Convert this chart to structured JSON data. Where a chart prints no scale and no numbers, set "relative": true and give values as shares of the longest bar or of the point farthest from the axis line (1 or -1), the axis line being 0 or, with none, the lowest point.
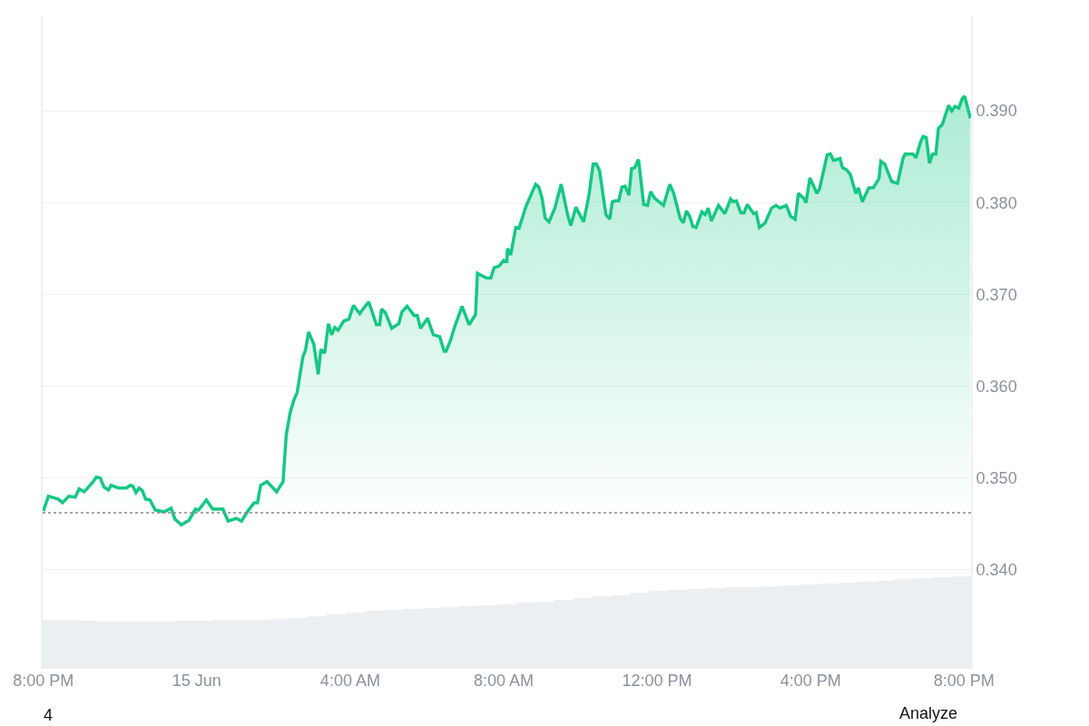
{
  "chart_data": [
    {
      "type": "area",
      "x": [
        "--06-14T20:00",
        "--06-14T20:08",
        "--06-14T20:23",
        "--06-14T20:30",
        "--06-14T20:40",
        "--06-14T20:50",
        "--06-14T20:56",
        "--06-14T21:04",
        "--06-14T21:17",
        "--06-14T21:23",
        "--06-14T21:29",
        "--06-14T21:35",
        "--06-14T21:42",
        "--06-14T21:46",
        "--06-14T21:58",
        "--06-14T22:10",
        "--06-14T22:16",
        "--06-14T22:20",
        "--06-14T22:25",
        "--06-14T22:30",
        "--06-14T22:35",
        "--06-14T22:40",
        "--06-14T22:47",
        "--06-14T22:55",
        "--06-14T23:09",
        "--06-14T23:20",
        "--06-14T23:26",
        "--06-14T23:36",
        "--06-14T23:48",
        "--06-14T23:58",
        "--06-15T00:03",
        "--06-15T00:15",
        "--06-15T00:25",
        "--06-15T00:41",
        "--06-15T00:49",
        "--06-15T01:02",
        "--06-15T01:10",
        "--06-15T01:21",
        "--06-15T01:30",
        "--06-15T01:35",
        "--06-15T01:40",
        "--06-15T01:50",
        "--06-15T02:05",
        "--06-15T02:15",
        "--06-15T02:20",
        "--06-15T02:26",
        "--06-15T02:32",
        "--06-15T02:37",
        "--06-15T02:46",
        "--06-15T02:50",
        "--06-15T02:55",
        "--06-15T03:03",
        "--06-15T03:10",
        "--06-15T03:14",
        "--06-15T03:20",
        "--06-15T03:26",
        "--06-15T03:31",
        "--06-15T03:36",
        "--06-15T03:41",
        "--06-15T03:50",
        "--06-15T03:58",
        "--06-15T04:05",
        "--06-15T04:15",
        "--06-15T04:20",
        "--06-15T04:29",
        "--06-15T04:41",
        "--06-15T04:46",
        "--06-15T04:49",
        "--06-15T04:55",
        "--06-15T05:05",
        "--06-15T05:16",
        "--06-15T05:21",
        "--06-15T05:29",
        "--06-15T05:40",
        "--06-15T05:45",
        "--06-15T05:50",
        "--06-15T06:01",
        "--06-15T06:10",
        "--06-15T06:20",
        "--06-15T06:27",
        "--06-15T06:30",
        "--06-15T06:37",
        "--06-15T06:43",
        "--06-15T06:55",
        "--06-15T07:06",
        "--06-15T07:16",
        "--06-15T07:19",
        "--06-15T07:33",
        "--06-15T07:40",
        "--06-15T07:45",
        "--06-15T07:53",
        "--06-15T08:00",
        "--06-15T08:05",
        "--06-15T08:06",
        "--06-15T08:11",
        "--06-15T08:19",
        "--06-15T08:24",
        "--06-15T08:35",
        "--06-15T08:50",
        "--06-15T08:55",
        "--06-15T09:00",
        "--06-15T09:05",
        "--06-15T09:11",
        "--06-15T09:20",
        "--06-15T09:30",
        "--06-15T09:40",
        "--06-15T09:45",
        "--06-15T09:53",
        "--06-15T10:05",
        "--06-15T10:13",
        "--06-15T10:20",
        "--06-15T10:25",
        "--06-15T10:30",
        "--06-15T10:40",
        "--06-15T10:46",
        "--06-15T10:50",
        "--06-15T10:55",
        "--06-15T11:00",
        "--06-15T11:05",
        "--06-15T11:10",
        "--06-15T11:16",
        "--06-15T11:20",
        "--06-15T11:25",
        "--06-15T11:31",
        "--06-15T11:39",
        "--06-15T11:45",
        "--06-15T11:50",
        "--06-15T11:56",
        "--06-15T12:10",
        "--06-15T12:20",
        "--06-15T12:26",
        "--06-15T12:36",
        "--06-15T12:41",
        "--06-15T12:46",
        "--06-15T12:51",
        "--06-15T12:56",
        "--06-15T13:01",
        "--06-15T13:10",
        "--06-15T13:15",
        "--06-15T13:20",
        "--06-15T13:25",
        "--06-15T13:36",
        "--06-15T13:46",
        "--06-15T13:55",
        "--06-15T13:59",
        "--06-15T14:04",
        "--06-15T14:11",
        "--06-15T14:16",
        "--06-15T14:21",
        "--06-15T14:31",
        "--06-15T14:35",
        "--06-15T14:40",
        "--06-15T14:49",
        "--06-15T14:59",
        "--06-15T15:06",
        "--06-15T15:12",
        "--06-15T15:22",
        "--06-15T15:29",
        "--06-15T15:36",
        "--06-15T15:41",
        "--06-15T15:49",
        "--06-15T15:53",
        "--06-15T15:59",
        "--06-15T16:10",
        "--06-15T16:14",
        "--06-15T16:26",
        "--06-15T16:31",
        "--06-15T16:36",
        "--06-15T16:46",
        "--06-15T16:50",
        "--06-15T16:56",
        "--06-15T17:02",
        "--06-15T17:11",
        "--06-15T17:15",
        "--06-15T17:21",
        "--06-15T17:31",
        "--06-15T17:38",
        "--06-15T17:47",
        "--06-15T17:50",
        "--06-15T17:56",
        "--06-15T18:07",
        "--06-15T18:16",
        "--06-15T18:25",
        "--06-15T18:28",
        "--06-15T18:40",
        "--06-15T18:45",
        "--06-15T18:52",
        "--06-15T18:56",
        "--06-15T19:01",
        "--06-15T19:06",
        "--06-15T19:11",
        "--06-15T19:16",
        "--06-15T19:20",
        "--06-15T19:26",
        "--06-15T19:36",
        "--06-15T19:41",
        "--06-15T19:46",
        "--06-15T19:52",
        "--06-15T19:57",
        "--06-15T20:01",
        "--06-15T20:10"
      ],
      "series": [
        {
          "color": "#16c784",
          "values": [
            0.3464,
            0.348,
            0.3477,
            0.3473,
            0.348,
            0.3479,
            0.3488,
            0.3485,
            0.3495,
            0.3501,
            0.35,
            0.349,
            0.3487,
            0.3492,
            0.3489,
            0.3489,
            0.3492,
            0.3491,
            0.3484,
            0.3489,
            0.3486,
            0.3477,
            0.3476,
            0.3465,
            0.3463,
            0.3467,
            0.3455,
            0.3449,
            0.3454,
            0.3466,
            0.3465,
            0.3476,
            0.3466,
            0.3466,
            0.3453,
            0.3456,
            0.3453,
            0.3465,
            0.3473,
            0.3473,
            0.3492,
            0.3496,
            0.3485,
            0.3496,
            0.3547,
            0.3571,
            0.3585,
            0.3593,
            0.3632,
            0.3639,
            0.3659,
            0.3646,
            0.3613,
            0.364,
            0.3636,
            0.3668,
            0.3656,
            0.3664,
            0.3661,
            0.3671,
            0.3673,
            0.3688,
            0.3679,
            0.3684,
            0.3692,
            0.3667,
            0.3667,
            0.3684,
            0.368,
            0.3663,
            0.3668,
            0.3681,
            0.3687,
            0.3677,
            0.3677,
            0.3663,
            0.3674,
            0.3656,
            0.3654,
            0.3638,
            0.3638,
            0.365,
            0.3664,
            0.3687,
            0.3667,
            0.3678,
            0.3723,
            0.3718,
            0.3718,
            0.3729,
            0.3731,
            0.3737,
            0.3736,
            0.375,
            0.3743,
            0.3773,
            0.3772,
            0.3796,
            0.382,
            0.3817,
            0.3805,
            0.3783,
            0.3779,
            0.3794,
            0.382,
            0.3787,
            0.3775,
            0.3795,
            0.3779,
            0.3806,
            0.3842,
            0.3842,
            0.3835,
            0.3787,
            0.3782,
            0.3801,
            0.3802,
            0.3802,
            0.3817,
            0.3818,
            0.3808,
            0.3837,
            0.3838,
            0.3847,
            0.3798,
            0.3797,
            0.3812,
            0.3805,
            0.3797,
            0.382,
            0.381,
            0.3783,
            0.3778,
            0.3791,
            0.3785,
            0.3774,
            0.3773,
            0.379,
            0.3787,
            0.3794,
            0.378,
            0.3797,
            0.3788,
            0.3804,
            0.3801,
            0.3802,
            0.3789,
            0.3789,
            0.3798,
            0.3788,
            0.3789,
            0.3773,
            0.3778,
            0.3794,
            0.3797,
            0.3794,
            0.3797,
            0.3785,
            0.3782,
            0.381,
            0.3805,
            0.38,
            0.3827,
            0.381,
            0.3815,
            0.3852,
            0.3853,
            0.3846,
            0.3848,
            0.3838,
            0.3836,
            0.3831,
            0.381,
            0.3816,
            0.3801,
            0.3816,
            0.3816,
            0.3826,
            0.3845,
            0.3842,
            0.3823,
            0.3821,
            0.3849,
            0.3853,
            0.3853,
            0.3849,
            0.3866,
            0.3872,
            0.3871,
            0.3843,
            0.3853,
            0.3853,
            0.3881,
            0.3885,
            0.3906,
            0.39,
            0.3905,
            0.3903,
            0.3913,
            0.3916,
            0.3892
          ]
        }
      ],
      "xlim": [
        "--06-14T19:59",
        "--06-15T20:11"
      ],
      "xticks": [
        {
          "value": "--06-14T20:00",
          "label": "8:00 PM"
        },
        {
          "value": "--06-15T00:00",
          "label": "15 Jun"
        },
        {
          "value": "--06-15T04:00",
          "label": "4:00 AM"
        },
        {
          "value": "--06-15T08:00",
          "label": "8:00 AM"
        },
        {
          "value": "--06-15T12:00",
          "label": "12:00 PM"
        },
        {
          "value": "--06-15T16:00",
          "label": "4:00 PM"
        },
        {
          "value": "--06-15T20:00",
          "label": "8:00 PM"
        }
      ],
      "ylim": [
        0.3292,
        0.4003
      ],
      "yticks": [
        {
          "value": 0.34,
          "label": "0.340"
        },
        {
          "value": 0.35,
          "label": "0.350"
        },
        {
          "value": 0.36,
          "label": "0.360"
        },
        {
          "value": 0.37,
          "label": "0.370"
        },
        {
          "value": 0.38,
          "label": "0.380"
        },
        {
          "value": 0.39,
          "label": "0.390"
        }
      ],
      "ref_lines": [
        {
          "axis": "y",
          "value": 0.3462,
          "color": "#888888",
          "line_style": "dotted"
        }
      ],
      "grid": "y",
      "annotations": [
        "4",
        "Analyze"
      ]
    },
    {
      "type": "bar",
      "relative": true,
      "color": "#eceff2",
      "categories": [
        null,
        null,
        null,
        null,
        null,
        null,
        null,
        null,
        null,
        null,
        null,
        null,
        null,
        null,
        null,
        null,
        null,
        null,
        null,
        null,
        null,
        null,
        null,
        null,
        null,
        null,
        null,
        null,
        null,
        null,
        null,
        null,
        null,
        null,
        null,
        null,
        null,
        null,
        null,
        null,
        null,
        null,
        null,
        null,
        null,
        null,
        null,
        null,
        null
      ],
      "values": [
        0.53,
        0.53,
        0.52,
        0.51,
        0.51,
        0.51,
        0.51,
        0.52,
        0.52,
        0.53,
        0.53,
        0.53,
        0.54,
        0.55,
        0.57,
        0.59,
        0.61,
        0.63,
        0.64,
        0.65,
        0.66,
        0.67,
        0.68,
        0.69,
        0.7,
        0.72,
        0.73,
        0.75,
        0.76,
        0.78,
        0.79,
        0.82,
        0.84,
        0.85,
        0.86,
        0.87,
        0.88,
        0.88,
        0.89,
        0.9,
        0.91,
        0.92,
        0.93,
        0.94,
        0.95,
        0.97,
        0.98,
        0.99,
        1
      ]
    }
  ]
}
